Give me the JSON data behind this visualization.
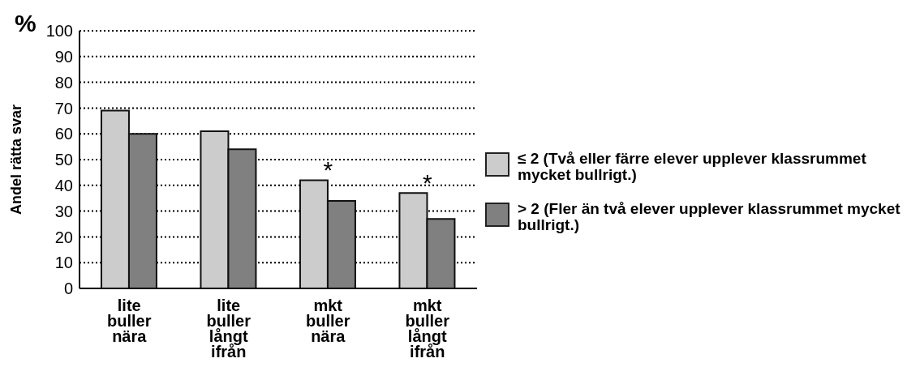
{
  "chart_data": {
    "type": "bar",
    "title": "%",
    "ylabel": "Andel rätta svar",
    "categories": [
      "lite buller nära",
      "lite buller långt ifrån",
      "mkt buller nära",
      "mkt buller långt ifrån"
    ],
    "series": [
      {
        "name": "≤ 2 (Två eller färre elever upplever klassrummet mycket bullrigt.)",
        "color": "#cccccc",
        "values": [
          69,
          61,
          42,
          37
        ]
      },
      {
        "name": "> 2 (Fler än två elever upplever klassrummet mycket bullrigt.)",
        "color": "#808080",
        "values": [
          60,
          54,
          34,
          27
        ]
      }
    ],
    "ylim": [
      0,
      100
    ],
    "yticks": [
      0,
      10,
      20,
      30,
      40,
      50,
      60,
      70,
      80,
      90,
      100
    ],
    "grid": "y",
    "legend": "right",
    "annotations": [
      {
        "text": "*",
        "x": "mkt buller nära",
        "y": 42
      },
      {
        "text": "*",
        "x": "mkt buller långt ifrån",
        "y": 37
      }
    ]
  }
}
